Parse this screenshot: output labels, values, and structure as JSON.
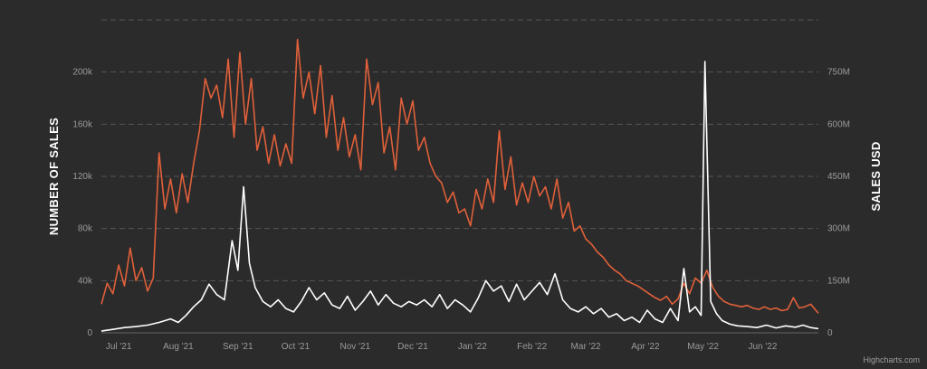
{
  "chart_data": {
    "type": "line",
    "title": "",
    "credits": "Highcharts.com",
    "grid": true,
    "legend": "none",
    "colors": {
      "background": "#2b2b2b",
      "sales_count": "#e0603a",
      "sales_usd": "#ffffff",
      "grid": "#555555",
      "tick": "#9a9a9a"
    },
    "x_axis": {
      "type": "datetime",
      "range": [
        "2021-06-22",
        "2022-06-30"
      ],
      "ticks": [
        {
          "date": "2021-07-01",
          "label": "Jul '21"
        },
        {
          "date": "2021-08-01",
          "label": "Aug '21"
        },
        {
          "date": "2021-09-01",
          "label": "Sep '21"
        },
        {
          "date": "2021-10-01",
          "label": "Oct '21"
        },
        {
          "date": "2021-11-01",
          "label": "Nov '21"
        },
        {
          "date": "2021-12-01",
          "label": "Dec '21"
        },
        {
          "date": "2022-01-01",
          "label": "Jan '22"
        },
        {
          "date": "2022-02-01",
          "label": "Feb '22"
        },
        {
          "date": "2022-03-01",
          "label": "Mar '22"
        },
        {
          "date": "2022-04-01",
          "label": "Apr '22"
        },
        {
          "date": "2022-05-01",
          "label": "May '22"
        },
        {
          "date": "2022-06-01",
          "label": "Jun '22"
        }
      ]
    },
    "y_axis_left": {
      "title": "NUMBER OF SALES",
      "range": [
        0,
        240000
      ],
      "ticks": [
        {
          "value": 0,
          "label": "0"
        },
        {
          "value": 40000,
          "label": "40k"
        },
        {
          "value": 80000,
          "label": "80k"
        },
        {
          "value": 120000,
          "label": "120k"
        },
        {
          "value": 160000,
          "label": "160k"
        },
        {
          "value": 200000,
          "label": "200k"
        }
      ]
    },
    "y_axis_right": {
      "title": "SALES USD",
      "range": [
        0,
        900000000
      ],
      "ticks": [
        {
          "value": 0,
          "label": "0"
        },
        {
          "value": 150000000,
          "label": "150M"
        },
        {
          "value": 300000000,
          "label": "300M"
        },
        {
          "value": 450000000,
          "label": "450M"
        },
        {
          "value": 600000000,
          "label": "600M"
        },
        {
          "value": 750000000,
          "label": "750M"
        }
      ]
    },
    "series": [
      {
        "key": "sales_count",
        "axis": "left",
        "color": "#e0603a",
        "points": [
          [
            "2021-06-22",
            22000
          ],
          [
            "2021-06-25",
            38000
          ],
          [
            "2021-06-28",
            30000
          ],
          [
            "2021-07-01",
            52000
          ],
          [
            "2021-07-04",
            36000
          ],
          [
            "2021-07-07",
            65000
          ],
          [
            "2021-07-10",
            40000
          ],
          [
            "2021-07-13",
            50000
          ],
          [
            "2021-07-16",
            32000
          ],
          [
            "2021-07-19",
            42000
          ],
          [
            "2021-07-22",
            138000
          ],
          [
            "2021-07-25",
            95000
          ],
          [
            "2021-07-28",
            118000
          ],
          [
            "2021-07-31",
            92000
          ],
          [
            "2021-08-03",
            122000
          ],
          [
            "2021-08-06",
            100000
          ],
          [
            "2021-08-09",
            130000
          ],
          [
            "2021-08-12",
            155000
          ],
          [
            "2021-08-15",
            195000
          ],
          [
            "2021-08-18",
            180000
          ],
          [
            "2021-08-21",
            190000
          ],
          [
            "2021-08-24",
            165000
          ],
          [
            "2021-08-27",
            210000
          ],
          [
            "2021-08-30",
            150000
          ],
          [
            "2021-09-02",
            215000
          ],
          [
            "2021-09-05",
            160000
          ],
          [
            "2021-09-08",
            195000
          ],
          [
            "2021-09-11",
            140000
          ],
          [
            "2021-09-14",
            158000
          ],
          [
            "2021-09-17",
            130000
          ],
          [
            "2021-09-20",
            152000
          ],
          [
            "2021-09-23",
            128000
          ],
          [
            "2021-09-26",
            145000
          ],
          [
            "2021-09-29",
            130000
          ],
          [
            "2021-10-02",
            225000
          ],
          [
            "2021-10-05",
            180000
          ],
          [
            "2021-10-08",
            200000
          ],
          [
            "2021-10-11",
            168000
          ],
          [
            "2021-10-14",
            205000
          ],
          [
            "2021-10-17",
            150000
          ],
          [
            "2021-10-20",
            182000
          ],
          [
            "2021-10-23",
            140000
          ],
          [
            "2021-10-26",
            165000
          ],
          [
            "2021-10-29",
            135000
          ],
          [
            "2021-11-01",
            152000
          ],
          [
            "2021-11-04",
            125000
          ],
          [
            "2021-11-07",
            210000
          ],
          [
            "2021-11-10",
            175000
          ],
          [
            "2021-11-13",
            192000
          ],
          [
            "2021-11-16",
            138000
          ],
          [
            "2021-11-19",
            158000
          ],
          [
            "2021-11-22",
            125000
          ],
          [
            "2021-11-25",
            180000
          ],
          [
            "2021-11-28",
            160000
          ],
          [
            "2021-12-01",
            178000
          ],
          [
            "2021-12-04",
            140000
          ],
          [
            "2021-12-07",
            150000
          ],
          [
            "2021-12-10",
            130000
          ],
          [
            "2021-12-13",
            120000
          ],
          [
            "2021-12-16",
            115000
          ],
          [
            "2021-12-19",
            100000
          ],
          [
            "2021-12-22",
            108000
          ],
          [
            "2021-12-25",
            92000
          ],
          [
            "2021-12-28",
            95000
          ],
          [
            "2021-12-31",
            82000
          ],
          [
            "2022-01-03",
            110000
          ],
          [
            "2022-01-06",
            95000
          ],
          [
            "2022-01-09",
            118000
          ],
          [
            "2022-01-12",
            100000
          ],
          [
            "2022-01-15",
            155000
          ],
          [
            "2022-01-18",
            110000
          ],
          [
            "2022-01-21",
            135000
          ],
          [
            "2022-01-24",
            98000
          ],
          [
            "2022-01-27",
            115000
          ],
          [
            "2022-01-30",
            100000
          ],
          [
            "2022-02-02",
            120000
          ],
          [
            "2022-02-05",
            105000
          ],
          [
            "2022-02-08",
            112000
          ],
          [
            "2022-02-11",
            95000
          ],
          [
            "2022-02-14",
            118000
          ],
          [
            "2022-02-17",
            88000
          ],
          [
            "2022-02-20",
            100000
          ],
          [
            "2022-02-23",
            78000
          ],
          [
            "2022-02-26",
            82000
          ],
          [
            "2022-03-01",
            72000
          ],
          [
            "2022-03-04",
            68000
          ],
          [
            "2022-03-07",
            62000
          ],
          [
            "2022-03-10",
            58000
          ],
          [
            "2022-03-13",
            52000
          ],
          [
            "2022-03-16",
            48000
          ],
          [
            "2022-03-19",
            45000
          ],
          [
            "2022-03-22",
            40000
          ],
          [
            "2022-03-25",
            38000
          ],
          [
            "2022-03-28",
            36000
          ],
          [
            "2022-03-31",
            33000
          ],
          [
            "2022-04-03",
            30000
          ],
          [
            "2022-04-06",
            27000
          ],
          [
            "2022-04-09",
            25000
          ],
          [
            "2022-04-12",
            28000
          ],
          [
            "2022-04-15",
            22000
          ],
          [
            "2022-04-18",
            26000
          ],
          [
            "2022-04-21",
            38000
          ],
          [
            "2022-04-24",
            30000
          ],
          [
            "2022-04-27",
            42000
          ],
          [
            "2022-04-30",
            38000
          ],
          [
            "2022-05-03",
            48000
          ],
          [
            "2022-05-06",
            35000
          ],
          [
            "2022-05-09",
            28000
          ],
          [
            "2022-05-12",
            24000
          ],
          [
            "2022-05-15",
            22000
          ],
          [
            "2022-05-18",
            21000
          ],
          [
            "2022-05-21",
            20000
          ],
          [
            "2022-05-24",
            21000
          ],
          [
            "2022-05-27",
            19000
          ],
          [
            "2022-05-30",
            18000
          ],
          [
            "2022-06-02",
            20000
          ],
          [
            "2022-06-05",
            18000
          ],
          [
            "2022-06-08",
            19000
          ],
          [
            "2022-06-11",
            17000
          ],
          [
            "2022-06-14",
            18000
          ],
          [
            "2022-06-17",
            27000
          ],
          [
            "2022-06-20",
            19000
          ],
          [
            "2022-06-23",
            20000
          ],
          [
            "2022-06-26",
            22000
          ],
          [
            "2022-06-30",
            15000
          ]
        ]
      },
      {
        "key": "sales_usd",
        "axis": "right",
        "color": "#ffffff",
        "points": [
          [
            "2021-06-22",
            5000000
          ],
          [
            "2021-06-28",
            10000000
          ],
          [
            "2021-07-04",
            15000000
          ],
          [
            "2021-07-10",
            18000000
          ],
          [
            "2021-07-16",
            22000000
          ],
          [
            "2021-07-22",
            30000000
          ],
          [
            "2021-07-28",
            40000000
          ],
          [
            "2021-08-01",
            30000000
          ],
          [
            "2021-08-05",
            50000000
          ],
          [
            "2021-08-09",
            75000000
          ],
          [
            "2021-08-13",
            95000000
          ],
          [
            "2021-08-17",
            140000000
          ],
          [
            "2021-08-21",
            110000000
          ],
          [
            "2021-08-25",
            95000000
          ],
          [
            "2021-08-29",
            265000000
          ],
          [
            "2021-09-01",
            180000000
          ],
          [
            "2021-09-04",
            420000000
          ],
          [
            "2021-09-07",
            200000000
          ],
          [
            "2021-09-10",
            130000000
          ],
          [
            "2021-09-14",
            90000000
          ],
          [
            "2021-09-18",
            75000000
          ],
          [
            "2021-09-22",
            95000000
          ],
          [
            "2021-09-26",
            70000000
          ],
          [
            "2021-09-30",
            60000000
          ],
          [
            "2021-10-04",
            90000000
          ],
          [
            "2021-10-08",
            130000000
          ],
          [
            "2021-10-12",
            95000000
          ],
          [
            "2021-10-16",
            115000000
          ],
          [
            "2021-10-20",
            80000000
          ],
          [
            "2021-10-24",
            70000000
          ],
          [
            "2021-10-28",
            105000000
          ],
          [
            "2021-11-01",
            65000000
          ],
          [
            "2021-11-05",
            90000000
          ],
          [
            "2021-11-09",
            120000000
          ],
          [
            "2021-11-13",
            80000000
          ],
          [
            "2021-11-17",
            110000000
          ],
          [
            "2021-11-21",
            85000000
          ],
          [
            "2021-11-25",
            75000000
          ],
          [
            "2021-11-29",
            90000000
          ],
          [
            "2021-12-03",
            80000000
          ],
          [
            "2021-12-07",
            95000000
          ],
          [
            "2021-12-11",
            75000000
          ],
          [
            "2021-12-15",
            110000000
          ],
          [
            "2021-12-19",
            70000000
          ],
          [
            "2021-12-23",
            95000000
          ],
          [
            "2021-12-27",
            80000000
          ],
          [
            "2021-12-31",
            60000000
          ],
          [
            "2022-01-04",
            100000000
          ],
          [
            "2022-01-08",
            150000000
          ],
          [
            "2022-01-12",
            120000000
          ],
          [
            "2022-01-16",
            135000000
          ],
          [
            "2022-01-20",
            90000000
          ],
          [
            "2022-01-24",
            140000000
          ],
          [
            "2022-01-28",
            95000000
          ],
          [
            "2022-02-01",
            120000000
          ],
          [
            "2022-02-05",
            145000000
          ],
          [
            "2022-02-09",
            110000000
          ],
          [
            "2022-02-13",
            170000000
          ],
          [
            "2022-02-17",
            95000000
          ],
          [
            "2022-02-21",
            70000000
          ],
          [
            "2022-02-25",
            60000000
          ],
          [
            "2022-03-01",
            75000000
          ],
          [
            "2022-03-05",
            55000000
          ],
          [
            "2022-03-09",
            70000000
          ],
          [
            "2022-03-13",
            45000000
          ],
          [
            "2022-03-17",
            55000000
          ],
          [
            "2022-03-21",
            35000000
          ],
          [
            "2022-03-25",
            45000000
          ],
          [
            "2022-03-29",
            30000000
          ],
          [
            "2022-04-02",
            65000000
          ],
          [
            "2022-04-06",
            40000000
          ],
          [
            "2022-04-10",
            30000000
          ],
          [
            "2022-04-14",
            70000000
          ],
          [
            "2022-04-18",
            35000000
          ],
          [
            "2022-04-21",
            185000000
          ],
          [
            "2022-04-24",
            60000000
          ],
          [
            "2022-04-27",
            75000000
          ],
          [
            "2022-04-30",
            50000000
          ],
          [
            "2022-05-02",
            780000000
          ],
          [
            "2022-05-05",
            90000000
          ],
          [
            "2022-05-08",
            55000000
          ],
          [
            "2022-05-11",
            35000000
          ],
          [
            "2022-05-15",
            25000000
          ],
          [
            "2022-05-19",
            20000000
          ],
          [
            "2022-05-24",
            18000000
          ],
          [
            "2022-05-29",
            15000000
          ],
          [
            "2022-06-03",
            22000000
          ],
          [
            "2022-06-08",
            14000000
          ],
          [
            "2022-06-13",
            20000000
          ],
          [
            "2022-06-18",
            16000000
          ],
          [
            "2022-06-22",
            22000000
          ],
          [
            "2022-06-26",
            15000000
          ],
          [
            "2022-06-30",
            12000000
          ]
        ]
      }
    ]
  }
}
